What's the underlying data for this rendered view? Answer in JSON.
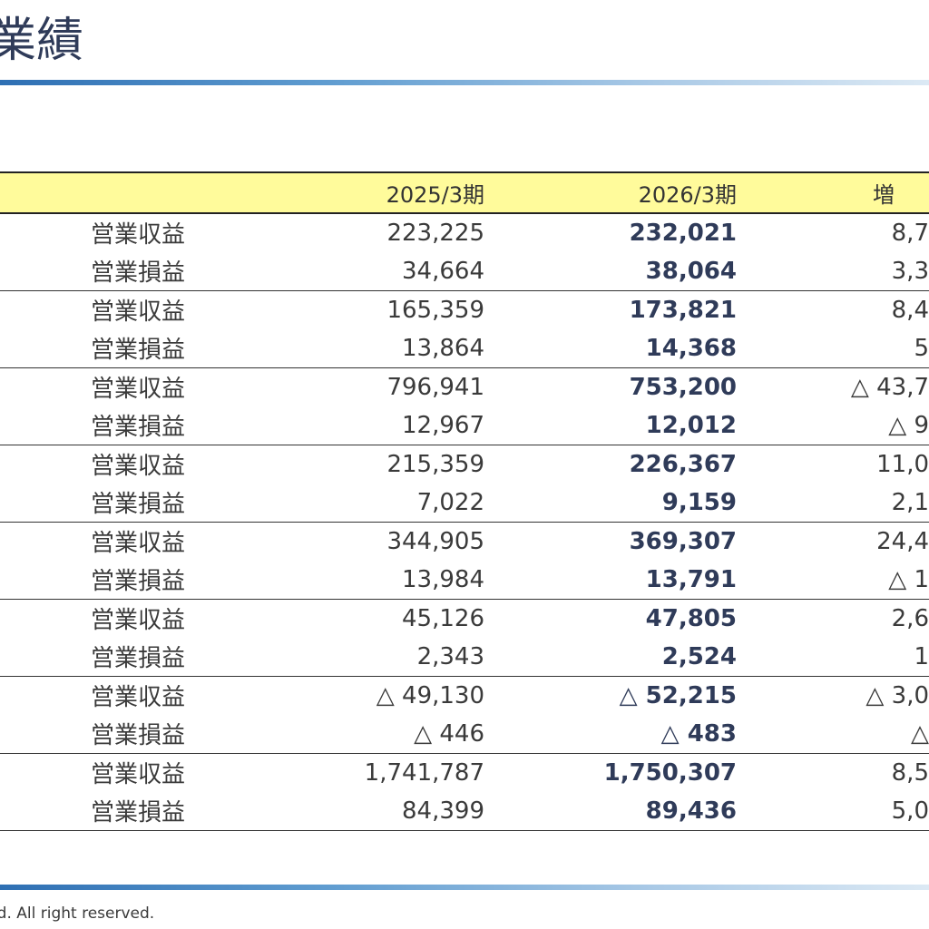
{
  "page": {
    "title": "業績",
    "footer": "td. All right reserved."
  },
  "table": {
    "headers": {
      "label": "",
      "prev": "2025/3期",
      "curr": "2026/3期",
      "diff": "増"
    },
    "rows": [
      {
        "label": "営業収益",
        "prev": "223,225",
        "curr": "232,021",
        "diff": "8,7"
      },
      {
        "label": "営業損益",
        "prev": "34,664",
        "curr": "38,064",
        "diff": "3,3"
      },
      {
        "label": "営業収益",
        "prev": "165,359",
        "curr": "173,821",
        "diff": "8,4"
      },
      {
        "label": "営業損益",
        "prev": "13,864",
        "curr": "14,368",
        "diff": "5"
      },
      {
        "label": "営業収益",
        "prev": "796,941",
        "curr": "753,200",
        "diff": "△ 43,7"
      },
      {
        "label": "営業損益",
        "prev": "12,967",
        "curr": "12,012",
        "diff": "△ 9"
      },
      {
        "label": "営業収益",
        "prev": "215,359",
        "curr": "226,367",
        "diff": "11,0"
      },
      {
        "label": "営業損益",
        "prev": "7,022",
        "curr": "9,159",
        "diff": "2,1"
      },
      {
        "label": "営業収益",
        "prev": "344,905",
        "curr": "369,307",
        "diff": "24,4"
      },
      {
        "label": "営業損益",
        "prev": "13,984",
        "curr": "13,791",
        "diff": "△ 1"
      },
      {
        "label": "営業収益",
        "prev": "45,126",
        "curr": "47,805",
        "diff": "2,6"
      },
      {
        "label": "営業損益",
        "prev": "2,343",
        "curr": "2,524",
        "diff": "1"
      },
      {
        "label": "営業収益",
        "prev": "△ 49,130",
        "curr": "△ 52,215",
        "diff": "△ 3,0"
      },
      {
        "label": "営業損益",
        "prev": "△ 446",
        "curr": "△ 483",
        "diff": "△"
      },
      {
        "label": "営業収益",
        "prev": "1,741,787",
        "curr": "1,750,307",
        "diff": "8,5"
      },
      {
        "label": "営業損益",
        "prev": "84,399",
        "curr": "89,436",
        "diff": "5,0"
      }
    ]
  }
}
